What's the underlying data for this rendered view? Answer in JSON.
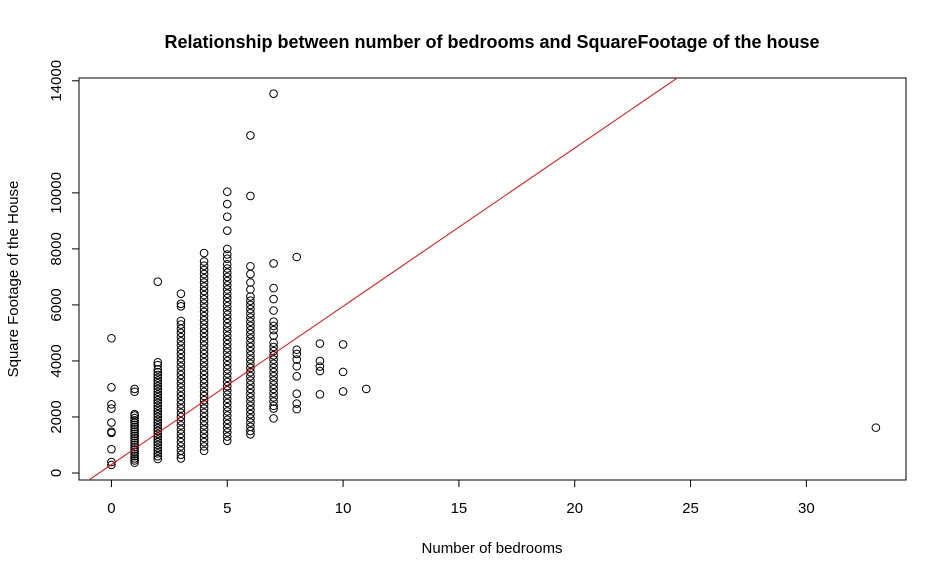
{
  "chart_data": {
    "type": "scatter",
    "title": "Relationship between number of bedrooms and SquareFootage of the house",
    "xlabel": "Number of bedrooms",
    "ylabel": "Square Footage of the House",
    "xlim": [
      -1.4,
      34.3
    ],
    "ylim": [
      -250,
      14100
    ],
    "x_ticks": [
      0,
      5,
      10,
      15,
      20,
      25,
      30
    ],
    "y_ticks": [
      0,
      2000,
      4000,
      6000,
      8000,
      10000,
      14000
    ],
    "grid": false,
    "legend": "none",
    "colors": {
      "points": "#000000",
      "fit_line": "#ff0000"
    },
    "series": [
      {
        "marker": "open-circle",
        "points": [
          [
            0,
            290
          ],
          [
            0,
            390
          ],
          [
            0,
            850
          ],
          [
            0,
            1430
          ],
          [
            0,
            1470
          ],
          [
            0,
            1800
          ],
          [
            0,
            2300
          ],
          [
            0,
            2450
          ],
          [
            0,
            3060
          ],
          [
            0,
            4810
          ],
          [
            1,
            370
          ],
          [
            1,
            450
          ],
          [
            1,
            520
          ],
          [
            1,
            600
          ],
          [
            1,
            680
          ],
          [
            1,
            760
          ],
          [
            1,
            840
          ],
          [
            1,
            920
          ],
          [
            1,
            1000
          ],
          [
            1,
            1080
          ],
          [
            1,
            1160
          ],
          [
            1,
            1240
          ],
          [
            1,
            1320
          ],
          [
            1,
            1400
          ],
          [
            1,
            1480
          ],
          [
            1,
            1560
          ],
          [
            1,
            1640
          ],
          [
            1,
            1720
          ],
          [
            1,
            1800
          ],
          [
            1,
            1880
          ],
          [
            1,
            1960
          ],
          [
            1,
            2050
          ],
          [
            1,
            2100
          ],
          [
            1,
            2900
          ],
          [
            1,
            3000
          ],
          [
            2,
            500
          ],
          [
            2,
            600
          ],
          [
            2,
            700
          ],
          [
            2,
            800
          ],
          [
            2,
            900
          ],
          [
            2,
            1000
          ],
          [
            2,
            1100
          ],
          [
            2,
            1200
          ],
          [
            2,
            1300
          ],
          [
            2,
            1400
          ],
          [
            2,
            1500
          ],
          [
            2,
            1600
          ],
          [
            2,
            1700
          ],
          [
            2,
            1800
          ],
          [
            2,
            1900
          ],
          [
            2,
            2000
          ],
          [
            2,
            2100
          ],
          [
            2,
            2200
          ],
          [
            2,
            2300
          ],
          [
            2,
            2400
          ],
          [
            2,
            2500
          ],
          [
            2,
            2600
          ],
          [
            2,
            2700
          ],
          [
            2,
            2800
          ],
          [
            2,
            2900
          ],
          [
            2,
            3000
          ],
          [
            2,
            3100
          ],
          [
            2,
            3200
          ],
          [
            2,
            3300
          ],
          [
            2,
            3400
          ],
          [
            2,
            3500
          ],
          [
            2,
            3600
          ],
          [
            2,
            3700
          ],
          [
            2,
            3850
          ],
          [
            2,
            3950
          ],
          [
            2,
            6830
          ],
          [
            3,
            520
          ],
          [
            3,
            650
          ],
          [
            3,
            800
          ],
          [
            3,
            950
          ],
          [
            3,
            1100
          ],
          [
            3,
            1250
          ],
          [
            3,
            1400
          ],
          [
            3,
            1550
          ],
          [
            3,
            1700
          ],
          [
            3,
            1850
          ],
          [
            3,
            2000
          ],
          [
            3,
            2150
          ],
          [
            3,
            2300
          ],
          [
            3,
            2450
          ],
          [
            3,
            2600
          ],
          [
            3,
            2750
          ],
          [
            3,
            2900
          ],
          [
            3,
            3050
          ],
          [
            3,
            3200
          ],
          [
            3,
            3350
          ],
          [
            3,
            3500
          ],
          [
            3,
            3650
          ],
          [
            3,
            3800
          ],
          [
            3,
            3950
          ],
          [
            3,
            4100
          ],
          [
            3,
            4250
          ],
          [
            3,
            4400
          ],
          [
            3,
            4550
          ],
          [
            3,
            4700
          ],
          [
            3,
            4850
          ],
          [
            3,
            5000
          ],
          [
            3,
            5150
          ],
          [
            3,
            5300
          ],
          [
            3,
            5430
          ],
          [
            3,
            5950
          ],
          [
            3,
            6040
          ],
          [
            3,
            6400
          ],
          [
            4,
            790
          ],
          [
            4,
            950
          ],
          [
            4,
            1100
          ],
          [
            4,
            1250
          ],
          [
            4,
            1400
          ],
          [
            4,
            1550
          ],
          [
            4,
            1700
          ],
          [
            4,
            1850
          ],
          [
            4,
            2000
          ],
          [
            4,
            2150
          ],
          [
            4,
            2300
          ],
          [
            4,
            2450
          ],
          [
            4,
            2600
          ],
          [
            4,
            2750
          ],
          [
            4,
            2900
          ],
          [
            4,
            3050
          ],
          [
            4,
            3200
          ],
          [
            4,
            3350
          ],
          [
            4,
            3500
          ],
          [
            4,
            3650
          ],
          [
            4,
            3800
          ],
          [
            4,
            3950
          ],
          [
            4,
            4100
          ],
          [
            4,
            4250
          ],
          [
            4,
            4400
          ],
          [
            4,
            4550
          ],
          [
            4,
            4700
          ],
          [
            4,
            4850
          ],
          [
            4,
            5000
          ],
          [
            4,
            5150
          ],
          [
            4,
            5300
          ],
          [
            4,
            5450
          ],
          [
            4,
            5600
          ],
          [
            4,
            5750
          ],
          [
            4,
            5900
          ],
          [
            4,
            6050
          ],
          [
            4,
            6200
          ],
          [
            4,
            6350
          ],
          [
            4,
            6500
          ],
          [
            4,
            6650
          ],
          [
            4,
            6800
          ],
          [
            4,
            6950
          ],
          [
            4,
            7100
          ],
          [
            4,
            7250
          ],
          [
            4,
            7400
          ],
          [
            4,
            7550
          ],
          [
            4,
            7850
          ],
          [
            5,
            1150
          ],
          [
            5,
            1300
          ],
          [
            5,
            1450
          ],
          [
            5,
            1600
          ],
          [
            5,
            1750
          ],
          [
            5,
            1900
          ],
          [
            5,
            2050
          ],
          [
            5,
            2200
          ],
          [
            5,
            2350
          ],
          [
            5,
            2500
          ],
          [
            5,
            2650
          ],
          [
            5,
            2800
          ],
          [
            5,
            2950
          ],
          [
            5,
            3100
          ],
          [
            5,
            3250
          ],
          [
            5,
            3400
          ],
          [
            5,
            3550
          ],
          [
            5,
            3700
          ],
          [
            5,
            3850
          ],
          [
            5,
            4000
          ],
          [
            5,
            4150
          ],
          [
            5,
            4300
          ],
          [
            5,
            4450
          ],
          [
            5,
            4600
          ],
          [
            5,
            4750
          ],
          [
            5,
            4900
          ],
          [
            5,
            5050
          ],
          [
            5,
            5200
          ],
          [
            5,
            5350
          ],
          [
            5,
            5500
          ],
          [
            5,
            5650
          ],
          [
            5,
            5800
          ],
          [
            5,
            5950
          ],
          [
            5,
            6100
          ],
          [
            5,
            6250
          ],
          [
            5,
            6400
          ],
          [
            5,
            6550
          ],
          [
            5,
            6700
          ],
          [
            5,
            6850
          ],
          [
            5,
            7000
          ],
          [
            5,
            7150
          ],
          [
            5,
            7300
          ],
          [
            5,
            7450
          ],
          [
            5,
            7650
          ],
          [
            5,
            7800
          ],
          [
            5,
            8000
          ],
          [
            5,
            8650
          ],
          [
            5,
            9150
          ],
          [
            5,
            9600
          ],
          [
            5,
            10040
          ],
          [
            6,
            1380
          ],
          [
            6,
            1500
          ],
          [
            6,
            1650
          ],
          [
            6,
            1800
          ],
          [
            6,
            1950
          ],
          [
            6,
            2100
          ],
          [
            6,
            2250
          ],
          [
            6,
            2400
          ],
          [
            6,
            2550
          ],
          [
            6,
            2700
          ],
          [
            6,
            2850
          ],
          [
            6,
            3000
          ],
          [
            6,
            3150
          ],
          [
            6,
            3300
          ],
          [
            6,
            3450
          ],
          [
            6,
            3600
          ],
          [
            6,
            3750
          ],
          [
            6,
            3900
          ],
          [
            6,
            4050
          ],
          [
            6,
            4200
          ],
          [
            6,
            4350
          ],
          [
            6,
            4500
          ],
          [
            6,
            4650
          ],
          [
            6,
            4800
          ],
          [
            6,
            4950
          ],
          [
            6,
            5100
          ],
          [
            6,
            5250
          ],
          [
            6,
            5400
          ],
          [
            6,
            5550
          ],
          [
            6,
            5700
          ],
          [
            6,
            5850
          ],
          [
            6,
            6000
          ],
          [
            6,
            6150
          ],
          [
            6,
            6300
          ],
          [
            6,
            6550
          ],
          [
            6,
            6800
          ],
          [
            6,
            7100
          ],
          [
            6,
            7380
          ],
          [
            6,
            9890
          ],
          [
            6,
            12050
          ],
          [
            7,
            1950
          ],
          [
            7,
            2300
          ],
          [
            7,
            2400
          ],
          [
            7,
            2550
          ],
          [
            7,
            2700
          ],
          [
            7,
            2850
          ],
          [
            7,
            3000
          ],
          [
            7,
            3150
          ],
          [
            7,
            3300
          ],
          [
            7,
            3450
          ],
          [
            7,
            3600
          ],
          [
            7,
            3750
          ],
          [
            7,
            3900
          ],
          [
            7,
            4050
          ],
          [
            7,
            4200
          ],
          [
            7,
            4350
          ],
          [
            7,
            4500
          ],
          [
            7,
            4650
          ],
          [
            7,
            4900
          ],
          [
            7,
            5100
          ],
          [
            7,
            5250
          ],
          [
            7,
            5400
          ],
          [
            7,
            5800
          ],
          [
            7,
            6210
          ],
          [
            7,
            6600
          ],
          [
            7,
            7480
          ],
          [
            7,
            13540
          ],
          [
            8,
            2280
          ],
          [
            8,
            2480
          ],
          [
            8,
            2830
          ],
          [
            8,
            3450
          ],
          [
            8,
            3810
          ],
          [
            8,
            4050
          ],
          [
            8,
            4250
          ],
          [
            8,
            4400
          ],
          [
            8,
            7710
          ],
          [
            9,
            2810
          ],
          [
            9,
            3640
          ],
          [
            9,
            3800
          ],
          [
            9,
            4000
          ],
          [
            9,
            4620
          ],
          [
            10,
            2910
          ],
          [
            10,
            3610
          ],
          [
            10,
            4590
          ],
          [
            11,
            3000
          ],
          [
            33,
            1620
          ]
        ]
      },
      {
        "type": "line",
        "fit_line": {
          "intercept": 300,
          "slope": 565
        }
      }
    ]
  }
}
